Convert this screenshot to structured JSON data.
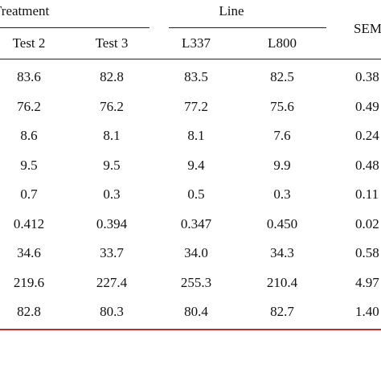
{
  "header": {
    "group_treatment": "Treatment",
    "group_line": "Line",
    "sem": "SEM",
    "columns": [
      "Test 2",
      "Test 3",
      "L337",
      "L800"
    ]
  },
  "rows": [
    [
      "83.6",
      "82.8",
      "83.5",
      "82.5",
      "0.38"
    ],
    [
      "76.2",
      "76.2",
      "77.2",
      "75.6",
      "0.49"
    ],
    [
      "8.6",
      "8.1",
      "8.1",
      "7.6",
      "0.24"
    ],
    [
      "9.5",
      "9.5",
      "9.4",
      "9.9",
      "0.48"
    ],
    [
      "0.7",
      "0.3",
      "0.5",
      "0.3",
      "0.11"
    ],
    [
      "0.412",
      "0.394",
      "0.347",
      "0.450",
      "0.02"
    ],
    [
      "34.6",
      "33.7",
      "34.0",
      "34.3",
      "0.58"
    ],
    [
      "219.6",
      "227.4",
      "255.3",
      "210.4",
      "4.97"
    ],
    [
      "82.8",
      "80.3",
      "80.4",
      "82.7",
      "1.40"
    ]
  ],
  "colors": {
    "bottom_rule": "#b5312f",
    "text": "#111111"
  }
}
